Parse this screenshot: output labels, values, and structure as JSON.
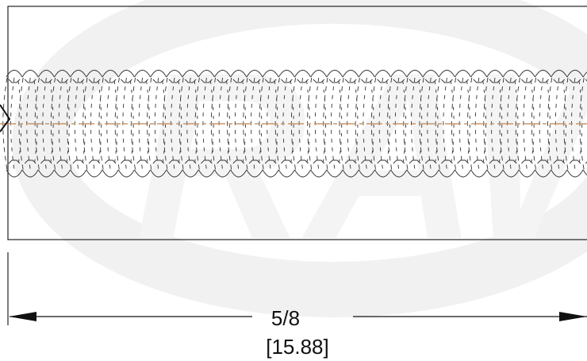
{
  "drawing": {
    "dimension_fraction": "5/8",
    "dimension_metric": "[15.88]",
    "watermark": "RAW"
  },
  "colors": {
    "line": "#222222",
    "thread": "#333333",
    "centerline": "#c8956a",
    "watermark": "#f1f1f1"
  }
}
